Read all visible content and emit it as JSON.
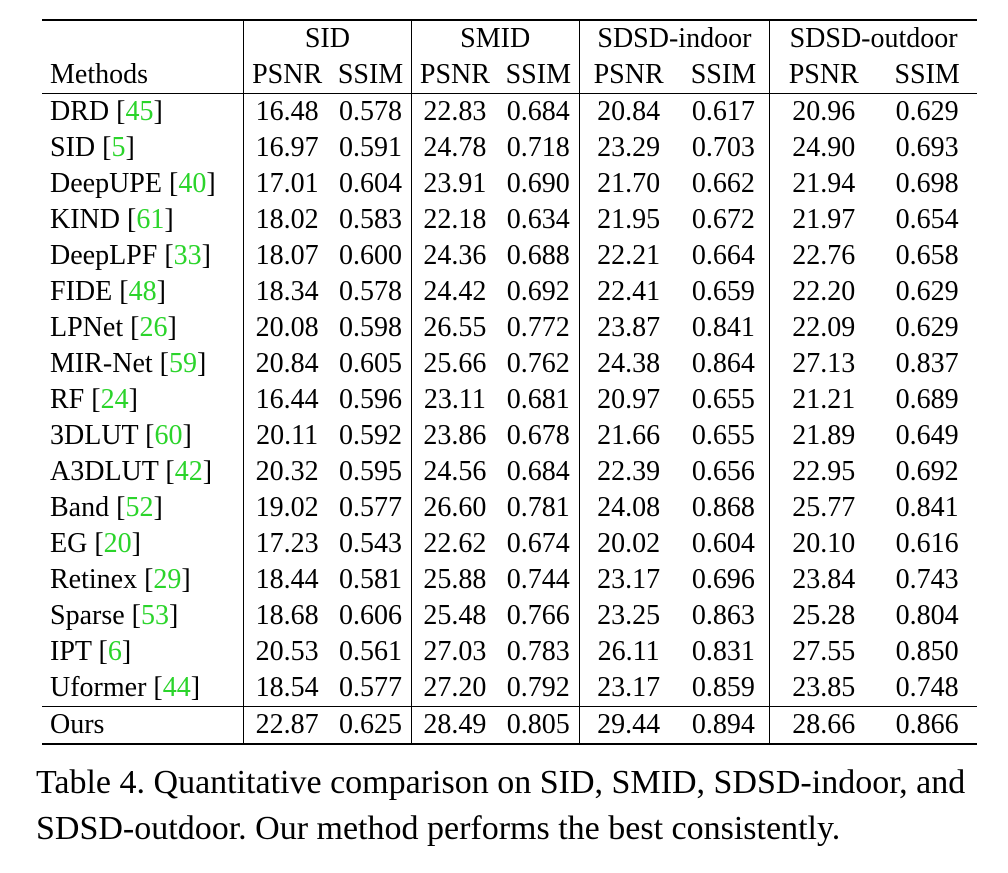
{
  "table": {
    "groups": [
      "SID",
      "SMID",
      "SDSD-indoor",
      "SDSD-outdoor"
    ],
    "methods_header": "Methods",
    "metrics": [
      "PSNR",
      "SSIM",
      "PSNR",
      "SSIM",
      "PSNR",
      "SSIM",
      "PSNR",
      "SSIM"
    ],
    "rows": [
      {
        "name": "DRD",
        "cite": "45",
        "values": [
          "16.48",
          "0.578",
          "22.83",
          "0.684",
          "20.84",
          "0.617",
          "20.96",
          "0.629"
        ]
      },
      {
        "name": "SID",
        "cite": "5",
        "values": [
          "16.97",
          "0.591",
          "24.78",
          "0.718",
          "23.29",
          "0.703",
          "24.90",
          "0.693"
        ]
      },
      {
        "name": "DeepUPE",
        "cite": "40",
        "values": [
          "17.01",
          "0.604",
          "23.91",
          "0.690",
          "21.70",
          "0.662",
          "21.94",
          "0.698"
        ]
      },
      {
        "name": "KIND",
        "cite": "61",
        "values": [
          "18.02",
          "0.583",
          "22.18",
          "0.634",
          "21.95",
          "0.672",
          "21.97",
          "0.654"
        ]
      },
      {
        "name": "DeepLPF",
        "cite": "33",
        "values": [
          "18.07",
          "0.600",
          "24.36",
          "0.688",
          "22.21",
          "0.664",
          "22.76",
          "0.658"
        ]
      },
      {
        "name": "FIDE",
        "cite": "48",
        "values": [
          "18.34",
          "0.578",
          "24.42",
          "0.692",
          "22.41",
          "0.659",
          "22.20",
          "0.629"
        ]
      },
      {
        "name": "LPNet",
        "cite": "26",
        "values": [
          "20.08",
          "0.598",
          "26.55",
          "0.772",
          "23.87",
          "0.841",
          "22.09",
          "0.629"
        ]
      },
      {
        "name": "MIR-Net",
        "cite": "59",
        "values": [
          "20.84",
          "0.605",
          "25.66",
          "0.762",
          "24.38",
          "0.864",
          "27.13",
          "0.837"
        ]
      },
      {
        "name": "RF",
        "cite": "24",
        "values": [
          "16.44",
          "0.596",
          "23.11",
          "0.681",
          "20.97",
          "0.655",
          "21.21",
          "0.689"
        ]
      },
      {
        "name": "3DLUT",
        "cite": "60",
        "values": [
          "20.11",
          "0.592",
          "23.86",
          "0.678",
          "21.66",
          "0.655",
          "21.89",
          "0.649"
        ]
      },
      {
        "name": "A3DLUT",
        "cite": "42",
        "values": [
          "20.32",
          "0.595",
          "24.56",
          "0.684",
          "22.39",
          "0.656",
          "22.95",
          "0.692"
        ]
      },
      {
        "name": "Band",
        "cite": "52",
        "values": [
          "19.02",
          "0.577",
          "26.60",
          "0.781",
          "24.08",
          "0.868",
          "25.77",
          "0.841"
        ]
      },
      {
        "name": "EG",
        "cite": "20",
        "values": [
          "17.23",
          "0.543",
          "22.62",
          "0.674",
          "20.02",
          "0.604",
          "20.10",
          "0.616"
        ]
      },
      {
        "name": "Retinex",
        "cite": "29",
        "values": [
          "18.44",
          "0.581",
          "25.88",
          "0.744",
          "23.17",
          "0.696",
          "23.84",
          "0.743"
        ]
      },
      {
        "name": "Sparse",
        "cite": "53",
        "values": [
          "18.68",
          "0.606",
          "25.48",
          "0.766",
          "23.25",
          "0.863",
          "25.28",
          "0.804"
        ]
      },
      {
        "name": "IPT",
        "cite": "6",
        "values": [
          "20.53",
          "0.561",
          "27.03",
          "0.783",
          "26.11",
          "0.831",
          "27.55",
          "0.850"
        ]
      },
      {
        "name": "Uformer",
        "cite": "44",
        "values": [
          "18.54",
          "0.577",
          "27.20",
          "0.792",
          "23.17",
          "0.859",
          "23.85",
          "0.748"
        ]
      }
    ],
    "ours": {
      "name": "Ours",
      "values": [
        "22.87",
        "0.625",
        "28.49",
        "0.805",
        "29.44",
        "0.894",
        "28.66",
        "0.866"
      ]
    }
  },
  "caption": "Table 4.  Quantitative comparison on SID, SMID, SDSD-indoor, and SDSD-outdoor. Our method performs the best consistently.",
  "colors": {
    "citation": "#2bd42b",
    "text": "#000000"
  }
}
